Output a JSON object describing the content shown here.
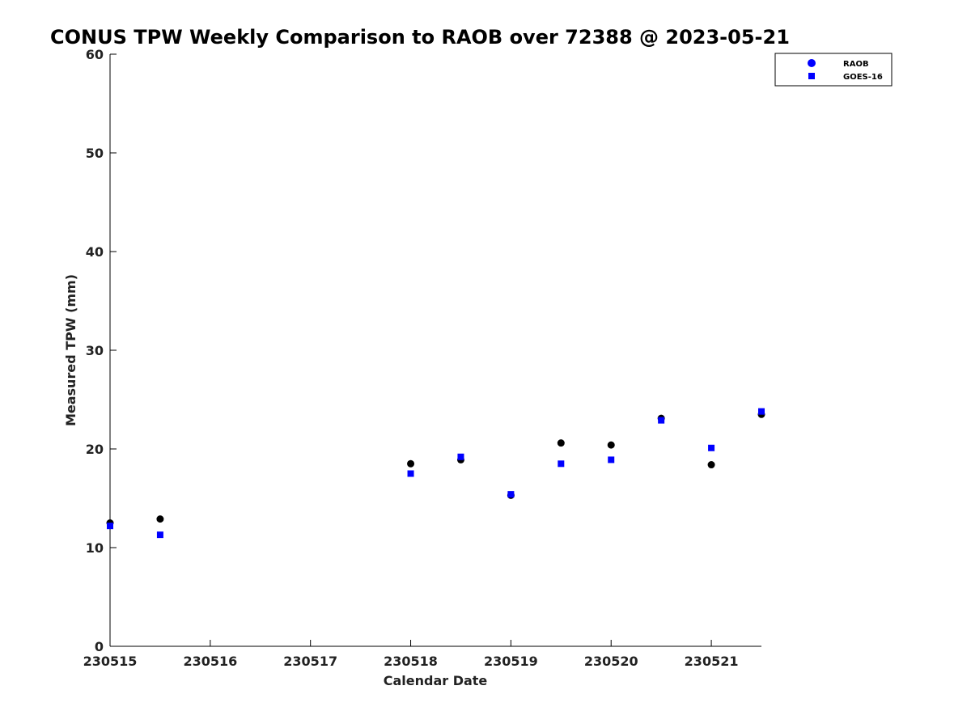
{
  "chart_data": {
    "type": "scatter",
    "title": "CONUS TPW Weekly Comparison to RAOB over 72388 @ 2023-05-21",
    "xlabel": "Calendar Date",
    "ylabel": "Measured TPW (mm)",
    "xlim": [
      230515,
      230521.5
    ],
    "ylim": [
      0,
      60
    ],
    "xticks": [
      230515,
      230516,
      230517,
      230518,
      230519,
      230520,
      230521
    ],
    "xtick_labels": [
      "230515",
      "230516",
      "230517",
      "230518",
      "230519",
      "230520",
      "230521"
    ],
    "yticks": [
      0,
      10,
      20,
      30,
      40,
      50,
      60
    ],
    "ytick_labels": [
      "0",
      "10",
      "20",
      "30",
      "40",
      "50",
      "60"
    ],
    "grid": false,
    "legend_position": "top-right",
    "x": [
      230515,
      230515.5,
      230518,
      230518.5,
      230519,
      230519.5,
      230520,
      230520.5,
      230521,
      230521.5
    ],
    "series": [
      {
        "name": "RAOB",
        "marker": "circle",
        "color": "#000000",
        "legend_color": "#0000ff",
        "values": [
          12.5,
          12.9,
          18.5,
          18.9,
          15.3,
          20.6,
          20.4,
          23.1,
          18.4,
          23.5
        ]
      },
      {
        "name": "GOES-16",
        "marker": "square",
        "color": "#0000ff",
        "legend_color": "#0000ff",
        "values": [
          12.2,
          11.3,
          17.5,
          19.2,
          15.4,
          18.5,
          18.9,
          22.9,
          20.1,
          23.8
        ]
      }
    ]
  }
}
